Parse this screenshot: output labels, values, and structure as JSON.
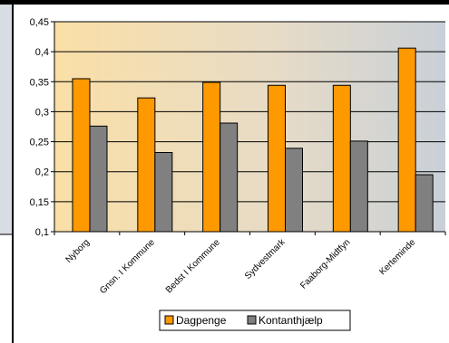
{
  "chart_data": {
    "type": "bar",
    "categories": [
      "Nyborg",
      "Gnsn. I Kommune",
      "Bedst I Kommune",
      "Sydvestmark",
      "Faaborg-Midtfyn",
      "Kerteminde"
    ],
    "series": [
      {
        "name": "Dagpenge",
        "color": "#ff9900",
        "values": [
          0.355,
          0.323,
          0.349,
          0.344,
          0.344,
          0.406
        ]
      },
      {
        "name": "Kontanthjælp",
        "color": "#808080",
        "values": [
          0.276,
          0.232,
          0.281,
          0.239,
          0.251,
          0.195
        ]
      }
    ],
    "yticks": [
      "0,1",
      "0,15",
      "0,2",
      "0,25",
      "0,3",
      "0,35",
      "0,4",
      "0,45"
    ],
    "ylim": [
      0.1,
      0.45
    ],
    "grid": true,
    "legend_position": "bottom-center",
    "title": "",
    "xlabel": "",
    "ylabel": ""
  }
}
